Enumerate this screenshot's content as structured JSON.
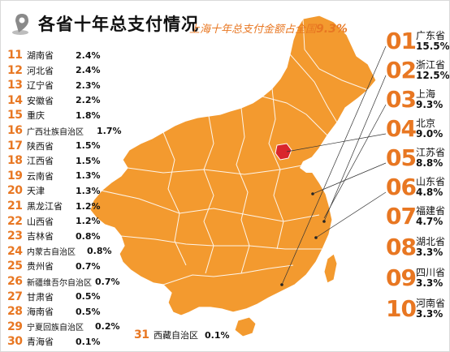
{
  "title": "各省十年总支付情况",
  "subtitle": {
    "prefix": "上海十年总支付金额占全国",
    "value": "9.3%"
  },
  "colors": {
    "accent": "#e87722",
    "map_fill": "#f39a2f",
    "highlight": "#d9262c"
  },
  "top_ranks": [
    {
      "rank": "01",
      "name": "广东省",
      "value": "15.5%"
    },
    {
      "rank": "02",
      "name": "浙江省",
      "value": "12.5%"
    },
    {
      "rank": "03",
      "name": "上海",
      "value": "9.3%"
    },
    {
      "rank": "04",
      "name": "北京",
      "value": "9.0%"
    },
    {
      "rank": "05",
      "name": "江苏省",
      "value": "8.8%"
    },
    {
      "rank": "06",
      "name": "山东省",
      "value": "4.8%"
    },
    {
      "rank": "07",
      "name": "福建省",
      "value": "4.7%"
    },
    {
      "rank": "08",
      "name": "湖北省",
      "value": "3.3%"
    },
    {
      "rank": "09",
      "name": "四川省",
      "value": "3.3%"
    },
    {
      "rank": "10",
      "name": "河南省",
      "value": "3.3%"
    }
  ],
  "ranks": [
    {
      "rank": "11",
      "name": "湖南省",
      "value": "2.4%"
    },
    {
      "rank": "12",
      "name": "河北省",
      "value": "2.4%"
    },
    {
      "rank": "13",
      "name": "辽宁省",
      "value": "2.3%"
    },
    {
      "rank": "14",
      "name": "安徽省",
      "value": "2.2%"
    },
    {
      "rank": "15",
      "name": "重庆",
      "value": "1.8%"
    },
    {
      "rank": "16",
      "name": "广西壮族自治区",
      "value": "1.7%"
    },
    {
      "rank": "17",
      "name": "陕西省",
      "value": "1.5%"
    },
    {
      "rank": "18",
      "name": "江西省",
      "value": "1.5%"
    },
    {
      "rank": "19",
      "name": "云南省",
      "value": "1.3%"
    },
    {
      "rank": "20",
      "name": "天津",
      "value": "1.3%"
    },
    {
      "rank": "21",
      "name": "黑龙江省",
      "value": "1.2%"
    },
    {
      "rank": "22",
      "name": "山西省",
      "value": "1.2%"
    },
    {
      "rank": "23",
      "name": "吉林省",
      "value": "0.8%"
    },
    {
      "rank": "24",
      "name": "内蒙古自治区",
      "value": "0.8%"
    },
    {
      "rank": "25",
      "name": "贵州省",
      "value": "0.7%"
    },
    {
      "rank": "26",
      "name": "新疆维吾尔自治区",
      "value": "0.7%"
    },
    {
      "rank": "27",
      "name": "甘肃省",
      "value": "0.5%"
    },
    {
      "rank": "28",
      "name": "海南省",
      "value": "0.5%"
    },
    {
      "rank": "29",
      "name": "宁夏回族自治区",
      "value": "0.2%"
    },
    {
      "rank": "30",
      "name": "青海省",
      "value": "0.1%"
    }
  ],
  "tibet": {
    "rank": "31",
    "name": "西藏自治区",
    "value": "0.1%"
  }
}
